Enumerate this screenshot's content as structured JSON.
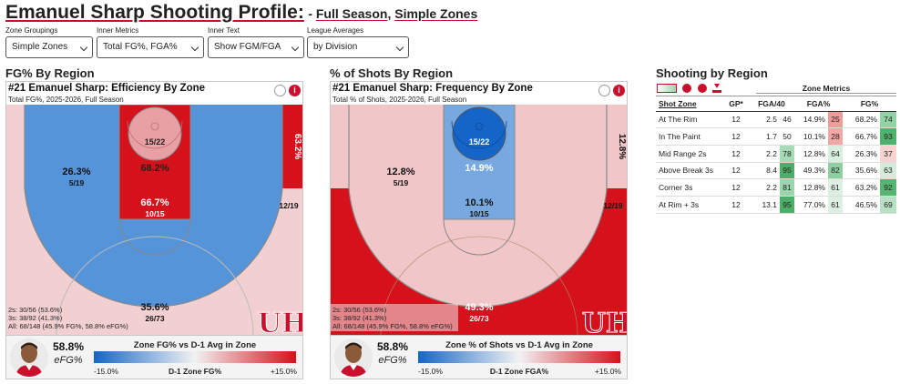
{
  "header": {
    "title": "Emanuel Sharp Shooting Profile:",
    "subtitle_prefix": "- ",
    "subtitle_a": "Full Season",
    "subtitle_sep": ", ",
    "subtitle_b": "Simple Zones"
  },
  "controls": [
    {
      "label": "Zone Groupings",
      "value": "Simple Zones"
    },
    {
      "label": "Inner Metrics",
      "value": "Total FG%, FGA%"
    },
    {
      "label": "Inner Text",
      "value": "Show FGM/FGA"
    },
    {
      "label": "League Averages",
      "value": "by Division"
    }
  ],
  "sections": {
    "left": "FG% By Region",
    "middle": "% of Shots By Region",
    "right": "Shooting by Region"
  },
  "left_panel": {
    "title": "#21 Emanuel Sharp: Efficiency By Zone",
    "subtitle": "Total FG%, 2025-2026, Full Season",
    "zones": {
      "rim": {
        "pct": "68.2%",
        "fgm": "15/22",
        "color": "#e8a0a4"
      },
      "paint": {
        "pct": "66.7%",
        "fgm": "10/15",
        "color": "#d5111b"
      },
      "mid": {
        "pct": "26.3%",
        "fgm": "5/19",
        "color": "#5694da"
      },
      "corner": {
        "pct": "63.2%",
        "fgm": "12/19",
        "color": "#d5111b"
      },
      "above": {
        "pct": "35.6%",
        "fgm": "26/73",
        "color": "#f2d0d2"
      }
    },
    "summary": [
      "2s: 30/56 (53.6%)",
      "3s: 38/92 (41.3%)",
      "All: 68/148 (45.9% FG%, 58.8% eFG%)"
    ],
    "footer": {
      "value": "58.8%",
      "metric": "eFG%",
      "legend_title": "Zone FG% vs D-1 Avg in Zone",
      "legend_min": "-15.0%",
      "legend_mid": "D-1 Zone FG%",
      "legend_max": "+15.0%"
    }
  },
  "middle_panel": {
    "title": "#21 Emanuel Sharp: Frequency By Zone",
    "subtitle": "Total % of Shots, 2025-2026, Full Season",
    "zones": {
      "rim": {
        "pct": "14.9%",
        "fgm": "15/22",
        "color": "#1565c8"
      },
      "paint": {
        "pct": "10.1%",
        "fgm": "10/15",
        "color": "#77a9e0"
      },
      "mid": {
        "pct": "12.8%",
        "fgm": "5/19",
        "color": "#f0c6c8"
      },
      "corner": {
        "pct": "12.8%",
        "fgm": "12/19",
        "color": "#f0c6c8"
      },
      "above": {
        "pct": "49.3%",
        "fgm": "26/73",
        "color": "#d5111b"
      }
    },
    "summary": [
      "2s: 30/56 (53.6%)",
      "3s: 38/92 (41.3%)",
      "All: 68/148 (45.9% FG%, 58.8% eFG%)"
    ],
    "footer": {
      "value": "58.8%",
      "metric": "eFG%",
      "legend_title": "Zone % of Shots vs D-1 Avg in Zone",
      "legend_min": "-15.0%",
      "legend_mid": "D-1 Zone FGA%",
      "legend_max": "+15.0%"
    }
  },
  "table": {
    "group_header": "Zone Metrics",
    "headers": {
      "zone": "Shot Zone",
      "gp": "GP*",
      "fga": "FGA/40",
      "fgapct": "FGA%",
      "fgpct": "FG%"
    },
    "rows": [
      {
        "zone": "At The Rim",
        "gp": "12",
        "fga": "2.5",
        "fga_p": "46",
        "fga_pc": "#ffffff",
        "fgapct": "14.9%",
        "fgapct_p": "25",
        "fgapct_pc": "#f19b98",
        "fgpct": "68.2%",
        "fgpct_p": "74",
        "fgpct_pc": "#92d3a6"
      },
      {
        "zone": "In The Paint",
        "gp": "12",
        "fga": "1.7",
        "fga_p": "50",
        "fga_pc": "#ffffff",
        "fgapct": "10.1%",
        "fgapct_p": "28",
        "fgapct_pc": "#f3a7a4",
        "fgpct": "66.7%",
        "fgpct_p": "93",
        "fgpct_pc": "#4fb26c"
      },
      {
        "zone": "Mid Range 2s",
        "gp": "12",
        "fga": "2.2",
        "fga_p": "78",
        "fga_pc": "#a6dbb6",
        "fgapct": "12.8%",
        "fgapct_p": "64",
        "fgapct_pc": "#d8eedf",
        "fgpct": "26.3%",
        "fgpct_p": "37",
        "fgpct_pc": "#f8d3d0"
      },
      {
        "zone": "Above Break 3s",
        "gp": "12",
        "fga": "8.4",
        "fga_p": "95",
        "fga_pc": "#4cae69",
        "fgapct": "49.3%",
        "fgapct_p": "82",
        "fgapct_pc": "#8ecfa2",
        "fgpct": "35.6%",
        "fgpct_p": "63",
        "fgpct_pc": "#d5ecdb"
      },
      {
        "zone": "Corner 3s",
        "gp": "12",
        "fga": "2.2",
        "fga_p": "81",
        "fga_pc": "#9bd5ad",
        "fgapct": "12.8%",
        "fgapct_p": "61",
        "fgapct_pc": "#dcefe2",
        "fgpct": "63.2%",
        "fgpct_p": "92",
        "fgpct_pc": "#55b571"
      },
      {
        "zone": "At Rim + 3s",
        "gp": "12",
        "fga": "13.1",
        "fga_p": "95",
        "fga_pc": "#4cae69",
        "fgapct": "77.0%",
        "fgapct_p": "61",
        "fgapct_pc": "#dcefe2",
        "fgpct": "46.5%",
        "fgpct_p": "69",
        "fgpct_pc": "#b8e1c4"
      }
    ]
  },
  "logo_text": "UH",
  "info_icon": "i"
}
